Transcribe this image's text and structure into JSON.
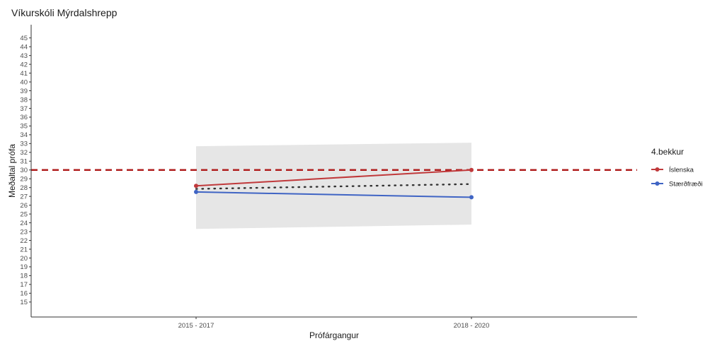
{
  "chart_data": {
    "type": "line",
    "title": "Víkurskóli Mýrdalshrepp",
    "xlabel": "Prófárgangur",
    "ylabel": "Meðaltal prófa",
    "categories": [
      "2015 - 2017",
      "2018 - 2020"
    ],
    "ylim": [
      13.3,
      46.5
    ],
    "yticks": [
      15,
      16,
      17,
      18,
      19,
      20,
      21,
      22,
      23,
      24,
      25,
      26,
      27,
      28,
      29,
      30,
      31,
      32,
      33,
      34,
      35,
      36,
      37,
      38,
      39,
      40,
      41,
      42,
      43,
      44,
      45
    ],
    "series": [
      {
        "name": "Íslenska",
        "color": "#c0393b",
        "values": [
          28.2,
          30.0
        ]
      },
      {
        "name": "Stærðfræði",
        "color": "#3f64c4",
        "values": [
          27.5,
          26.9
        ]
      }
    ],
    "band": {
      "lower": [
        23.3,
        23.8
      ],
      "upper": [
        32.7,
        33.1
      ],
      "color": "#e6e6e6"
    },
    "trend": {
      "values": [
        27.85,
        28.4
      ],
      "style": "dotted",
      "color": "#333333"
    },
    "reference_line": {
      "y": 30,
      "style": "dashed",
      "color": "#b01e1e"
    },
    "legend": {
      "title": "4.bekkur",
      "position": "right"
    },
    "grid": false
  }
}
